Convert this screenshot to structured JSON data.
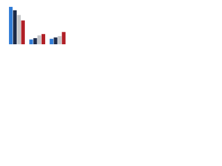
{
  "chart_data": {
    "type": "bar",
    "categories": [
      null,
      null,
      null
    ],
    "series": [
      {
        "color": "#2f7bd6",
        "values": [
          55,
          7,
          8
        ]
      },
      {
        "color": "#1c2b4a",
        "values": [
          50,
          9,
          10
        ]
      },
      {
        "color": "#c4c6c9",
        "values": [
          43,
          13,
          12
        ]
      },
      {
        "color": "#b01f26",
        "values": [
          35,
          15,
          18
        ]
      }
    ],
    "ylim": [
      0,
      60
    ]
  }
}
